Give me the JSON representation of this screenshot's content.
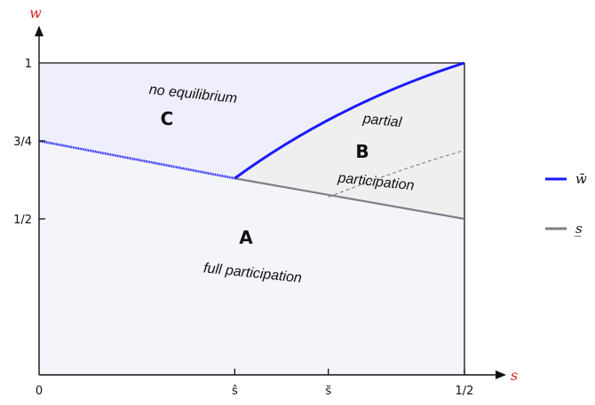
{
  "axes": {
    "x_name": "s",
    "y_name": "w",
    "x_ticks": [
      {
        "label": "0",
        "value": 0
      },
      {
        "label": "ŝ",
        "value": 0.23
      },
      {
        "label": "s̃",
        "value": 0.34
      },
      {
        "label": "1/2",
        "value": 0.5
      }
    ],
    "y_ticks": [
      {
        "label": "1/2",
        "value": 0.5
      },
      {
        "label": "3/4",
        "value": 0.75
      },
      {
        "label": "1",
        "value": 1
      }
    ],
    "x_range": [
      0,
      0.5
    ],
    "y_range": [
      0,
      1
    ],
    "axis_color": "#111111",
    "label_color": "#e0202a"
  },
  "regions": {
    "A": {
      "letter": "A",
      "caption": "full participation",
      "fill": "#f4f5fa"
    },
    "B": {
      "letter": "B",
      "caption_top": "partial",
      "caption_bottom": "participation",
      "fill": "#efefef"
    },
    "C": {
      "letter": "C",
      "caption": "no equilibrium",
      "fill": "#eeeefc"
    }
  },
  "curves": {
    "w_bar": {
      "color": "#1a1aff",
      "points": [
        [
          0,
          0.75
        ],
        [
          0.23,
          0.63
        ],
        [
          0.5,
          1.0
        ]
      ]
    },
    "s_bar": {
      "color": "#7f7f88",
      "points": [
        [
          0.23,
          0.63
        ],
        [
          0.5,
          0.5
        ]
      ]
    },
    "dashed": {
      "color": "#888888",
      "points": [
        [
          0.34,
          0.57
        ],
        [
          0.5,
          0.72
        ]
      ]
    }
  },
  "legend": [
    {
      "label": "w̄",
      "color": "#1a1aff"
    },
    {
      "label": "s̲",
      "color": "#7f7f88"
    }
  ]
}
